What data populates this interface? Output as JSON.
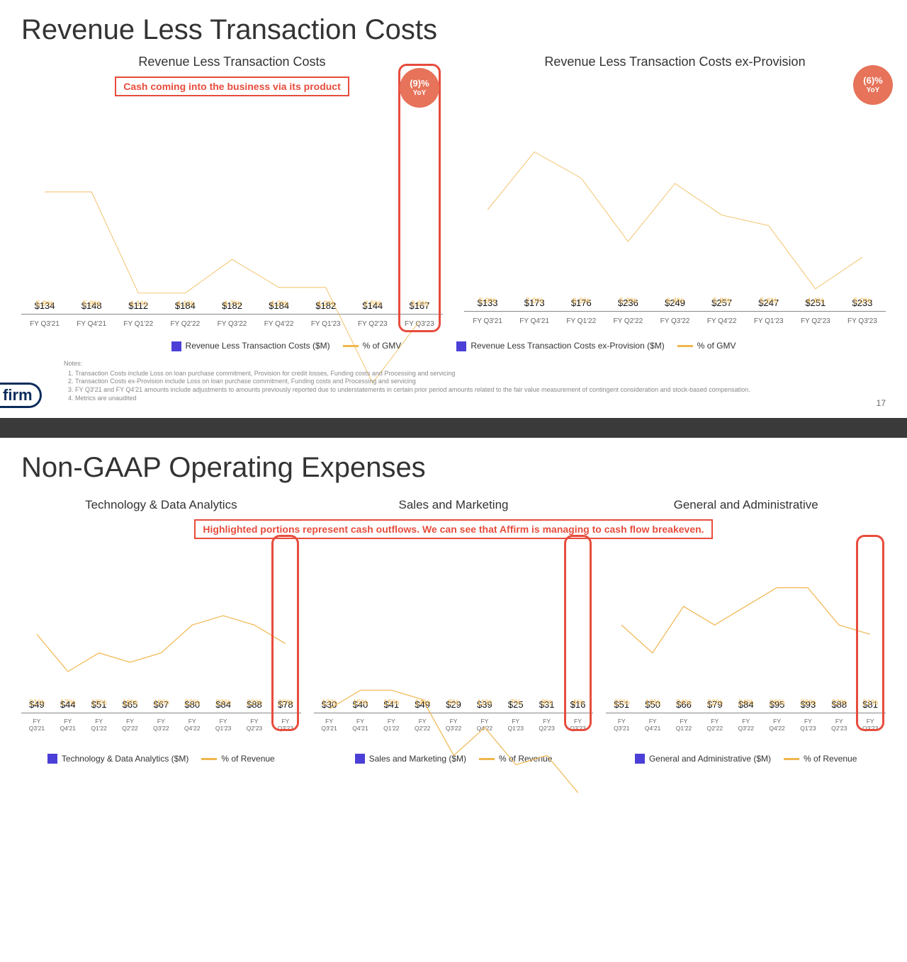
{
  "colors": {
    "bar": "#4b3fd8",
    "line": "#f0b64e",
    "pct_text": "#f0b64e",
    "annotation": "#e74c3c",
    "badge": "#e6735a",
    "text": "#333333",
    "axis": "#666666"
  },
  "slide1": {
    "title": "Revenue Less Transaction Costs",
    "annotation": "Cash coming into the business via its product",
    "page_num": "17",
    "logo": "firm",
    "chart_left": {
      "subtitle": "Revenue Less Transaction Costs",
      "type": "bar+line",
      "ymax": 200,
      "categories": [
        "FY Q3'21",
        "FY Q4'21",
        "FY Q1'22",
        "FY Q2'22",
        "FY Q3'22",
        "FY Q4'22",
        "FY Q1'23",
        "FY Q2'23",
        "FY Q3'23"
      ],
      "values": [
        134,
        148,
        112,
        184,
        182,
        184,
        182,
        144,
        167
      ],
      "labels": [
        "$134",
        "$148",
        "$112",
        "$184",
        "$182",
        "$184",
        "$182",
        "$144",
        "$167"
      ],
      "pcts": [
        "5.9%",
        "5.9%",
        "4.1%",
        "4.1%",
        "4.7%",
        "4.2%",
        "4.2%",
        "2.5%",
        "3.6%"
      ],
      "line_y": [
        5.9,
        5.9,
        4.1,
        4.1,
        4.7,
        4.2,
        4.2,
        2.5,
        3.6
      ],
      "line_ymax": 7.5,
      "badge": {
        "text1": "(9)%",
        "text2": "YoY"
      },
      "highlight_index": 8,
      "legend_bar": "Revenue Less Transaction Costs ($M)",
      "legend_line": "% of GMV"
    },
    "chart_right": {
      "subtitle": "Revenue Less Transaction Costs ex-Provision",
      "type": "bar+line",
      "ymax": 280,
      "categories": [
        "FY Q3'21",
        "FY Q4'21",
        "FY Q1'22",
        "FY Q2'22",
        "FY Q3'22",
        "FY Q4'22",
        "FY Q1'23",
        "FY Q2'23",
        "FY Q3'23"
      ],
      "values": [
        133,
        173,
        176,
        236,
        249,
        257,
        247,
        251,
        233
      ],
      "labels": [
        "$133",
        "$173",
        "$176",
        "$236",
        "$249",
        "$257",
        "$247",
        "$251",
        "$233"
      ],
      "pcts": [
        "5.9%",
        "7.0%",
        "6.5%",
        "5.3%",
        "6.4%",
        "5.8%",
        "5.6%",
        "4.4%",
        "5.0%"
      ],
      "line_y": [
        5.9,
        7.0,
        6.5,
        5.3,
        6.4,
        5.8,
        5.6,
        4.4,
        5.0
      ],
      "line_ymax": 8,
      "badge": {
        "text1": "(6)%",
        "text2": "YoY"
      },
      "legend_bar": "Revenue Less Transaction Costs ex-Provision ($M)",
      "legend_line": "% of GMV"
    },
    "notes_title": "Notes:",
    "notes": [
      "Transaction Costs include Loss on loan purchase commitment, Provision for credit losses, Funding costs and Processing and servicing",
      "Transaction Costs ex-Provision include Loss on loan purchase commitment, Funding costs and Processing and servicing",
      "FY Q3'21 and FY Q4'21 amounts include adjustments to amounts previously reported due to understatements in certain prior period amounts related to the fair value measurement of contingent consideration and stock-based compensation.",
      "Metrics are unaudited"
    ]
  },
  "slide2": {
    "title": "Non-GAAP Operating Expenses",
    "annotation": "Highlighted portions represent cash outflows. We can see that Affirm is managing to cash flow breakeven.",
    "ymax_shared": 100,
    "line_ymax_shared": 30,
    "categories": [
      "FY Q3'21",
      "FY Q4'21",
      "FY Q1'22",
      "FY Q2'22",
      "FY Q3'22",
      "FY Q4'22",
      "FY Q1'23",
      "FY Q2'23",
      "FY Q3'23"
    ],
    "chart_a": {
      "title": "Technology & Data Analytics",
      "values": [
        49,
        44,
        51,
        65,
        67,
        80,
        84,
        88,
        78
      ],
      "labels": [
        "$49",
        "$44",
        "$51",
        "$65",
        "$67",
        "$80",
        "$84",
        "$88",
        "$78"
      ],
      "pcts": [
        "21%",
        "17%",
        "19%",
        "18%",
        "19%",
        "22%",
        "23%",
        "22%",
        "20%"
      ],
      "line_y": [
        21,
        17,
        19,
        18,
        19,
        22,
        23,
        22,
        20
      ],
      "highlight_index": 8,
      "legend_bar": "Technology & Data Analytics ($M)",
      "legend_line": "% of Revenue"
    },
    "chart_b": {
      "title": "Sales and Marketing",
      "values": [
        30,
        40,
        41,
        49,
        29,
        39,
        25,
        31,
        16
      ],
      "labels": [
        "$30",
        "$40",
        "$41",
        "$49",
        "$29",
        "$39",
        "$25",
        "$31",
        "$16"
      ],
      "pcts": [
        "13%",
        "15%",
        "15%",
        "14%",
        "8%",
        "11%",
        "7%",
        "8%",
        "4%"
      ],
      "line_y": [
        13,
        15,
        15,
        14,
        8,
        11,
        7,
        8,
        4
      ],
      "highlight_index": 8,
      "legend_bar": "Sales and Marketing ($M)",
      "legend_line": "% of Revenue"
    },
    "chart_c": {
      "title": "General and Administrative",
      "values": [
        51,
        50,
        66,
        79,
        84,
        95,
        93,
        88,
        81
      ],
      "labels": [
        "$51",
        "$50",
        "$66",
        "$79",
        "$84",
        "$95",
        "$93",
        "$88",
        "$81"
      ],
      "pcts": [
        "22%",
        "19%",
        "24%",
        "22%",
        "24%",
        "26%",
        "26%",
        "22%",
        "21%"
      ],
      "line_y": [
        22,
        19,
        24,
        22,
        24,
        26,
        26,
        22,
        21
      ],
      "highlight_index": 8,
      "legend_bar": "General and Administrative ($M)",
      "legend_line": "% of Revenue"
    }
  }
}
